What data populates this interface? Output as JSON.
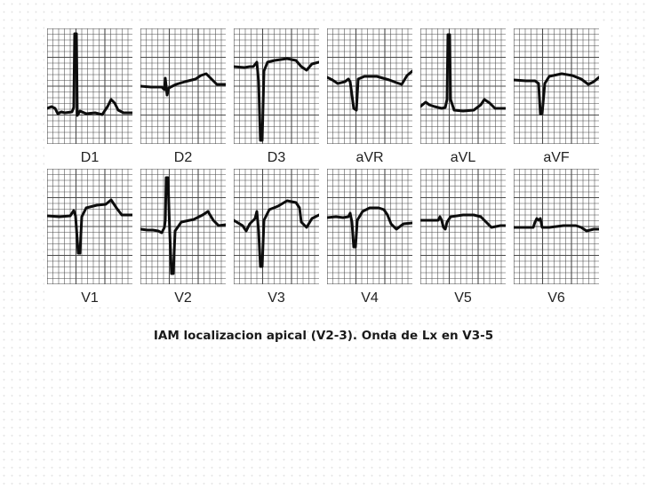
{
  "figure": {
    "leads": [
      {
        "label": "D1",
        "trace": [
          [
            0,
            90
          ],
          [
            5,
            88
          ],
          [
            9,
            90
          ],
          [
            12,
            96
          ],
          [
            16,
            94
          ],
          [
            20,
            95
          ],
          [
            28,
            94
          ],
          [
            30,
            89
          ],
          [
            31,
            6
          ],
          [
            33,
            6
          ],
          [
            34,
            98
          ],
          [
            37,
            93
          ],
          [
            44,
            96
          ],
          [
            54,
            95
          ],
          [
            62,
            97
          ],
          [
            68,
            88
          ],
          [
            72,
            80
          ],
          [
            76,
            84
          ],
          [
            80,
            92
          ],
          [
            86,
            95
          ],
          [
            96,
            95
          ]
        ]
      },
      {
        "label": "D2",
        "trace": [
          [
            0,
            65
          ],
          [
            12,
            66
          ],
          [
            24,
            66
          ],
          [
            27,
            69
          ],
          [
            28,
            56
          ],
          [
            30,
            75
          ],
          [
            32,
            67
          ],
          [
            40,
            63
          ],
          [
            50,
            60
          ],
          [
            62,
            57
          ],
          [
            68,
            53
          ],
          [
            74,
            51
          ],
          [
            80,
            57
          ],
          [
            86,
            63
          ],
          [
            96,
            63
          ]
        ]
      },
      {
        "label": "D3",
        "trace": [
          [
            0,
            43
          ],
          [
            12,
            44
          ],
          [
            18,
            43
          ],
          [
            22,
            43
          ],
          [
            26,
            38
          ],
          [
            28,
            60
          ],
          [
            30,
            126
          ],
          [
            32,
            126
          ],
          [
            34,
            48
          ],
          [
            38,
            38
          ],
          [
            46,
            36
          ],
          [
            60,
            34
          ],
          [
            70,
            36
          ],
          [
            76,
            43
          ],
          [
            82,
            47
          ],
          [
            88,
            40
          ],
          [
            96,
            38
          ]
        ]
      },
      {
        "label": "aVR",
        "trace": [
          [
            0,
            55
          ],
          [
            6,
            58
          ],
          [
            12,
            62
          ],
          [
            20,
            60
          ],
          [
            24,
            57
          ],
          [
            26,
            60
          ],
          [
            30,
            90
          ],
          [
            33,
            92
          ],
          [
            35,
            57
          ],
          [
            42,
            54
          ],
          [
            56,
            54
          ],
          [
            70,
            58
          ],
          [
            78,
            61
          ],
          [
            84,
            63
          ],
          [
            90,
            53
          ],
          [
            96,
            48
          ]
        ]
      },
      {
        "label": "aVL",
        "trace": [
          [
            0,
            88
          ],
          [
            6,
            83
          ],
          [
            10,
            86
          ],
          [
            16,
            88
          ],
          [
            24,
            90
          ],
          [
            28,
            89
          ],
          [
            30,
            80
          ],
          [
            31,
            7
          ],
          [
            33,
            7
          ],
          [
            34,
            80
          ],
          [
            38,
            92
          ],
          [
            48,
            93
          ],
          [
            60,
            92
          ],
          [
            68,
            86
          ],
          [
            72,
            80
          ],
          [
            78,
            84
          ],
          [
            84,
            90
          ],
          [
            96,
            90
          ]
        ]
      },
      {
        "label": "aVF",
        "trace": [
          [
            0,
            58
          ],
          [
            14,
            59
          ],
          [
            24,
            59
          ],
          [
            28,
            62
          ],
          [
            30,
            96
          ],
          [
            32,
            96
          ],
          [
            35,
            62
          ],
          [
            40,
            54
          ],
          [
            54,
            51
          ],
          [
            66,
            53
          ],
          [
            76,
            57
          ],
          [
            84,
            63
          ],
          [
            90,
            60
          ],
          [
            96,
            55
          ]
        ]
      },
      {
        "label": "V1",
        "trace": [
          [
            0,
            53
          ],
          [
            14,
            54
          ],
          [
            26,
            53
          ],
          [
            30,
            47
          ],
          [
            32,
            53
          ],
          [
            35,
            95
          ],
          [
            37,
            95
          ],
          [
            39,
            54
          ],
          [
            44,
            44
          ],
          [
            56,
            41
          ],
          [
            66,
            40
          ],
          [
            72,
            35
          ],
          [
            78,
            44
          ],
          [
            84,
            52
          ],
          [
            96,
            52
          ]
        ]
      },
      {
        "label": "V2",
        "trace": [
          [
            0,
            68
          ],
          [
            8,
            69
          ],
          [
            14,
            69
          ],
          [
            20,
            70
          ],
          [
            24,
            72
          ],
          [
            27,
            66
          ],
          [
            28,
            58
          ],
          [
            29,
            10
          ],
          [
            31,
            10
          ],
          [
            33,
            72
          ],
          [
            35,
            118
          ],
          [
            37,
            118
          ],
          [
            39,
            70
          ],
          [
            46,
            60
          ],
          [
            60,
            57
          ],
          [
            70,
            52
          ],
          [
            76,
            48
          ],
          [
            82,
            58
          ],
          [
            88,
            64
          ],
          [
            96,
            63
          ]
        ]
      },
      {
        "label": "V3",
        "trace": [
          [
            0,
            58
          ],
          [
            10,
            64
          ],
          [
            14,
            70
          ],
          [
            18,
            62
          ],
          [
            24,
            56
          ],
          [
            26,
            48
          ],
          [
            28,
            70
          ],
          [
            30,
            110
          ],
          [
            32,
            110
          ],
          [
            34,
            58
          ],
          [
            40,
            46
          ],
          [
            50,
            42
          ],
          [
            60,
            36
          ],
          [
            70,
            38
          ],
          [
            74,
            44
          ],
          [
            76,
            60
          ],
          [
            82,
            66
          ],
          [
            88,
            56
          ],
          [
            96,
            52
          ]
        ]
      },
      {
        "label": "V4",
        "trace": [
          [
            0,
            55
          ],
          [
            10,
            54
          ],
          [
            18,
            55
          ],
          [
            24,
            54
          ],
          [
            26,
            50
          ],
          [
            28,
            60
          ],
          [
            30,
            88
          ],
          [
            32,
            88
          ],
          [
            34,
            58
          ],
          [
            40,
            48
          ],
          [
            48,
            44
          ],
          [
            58,
            44
          ],
          [
            64,
            46
          ],
          [
            68,
            52
          ],
          [
            72,
            62
          ],
          [
            78,
            68
          ],
          [
            86,
            62
          ],
          [
            96,
            61
          ]
        ]
      },
      {
        "label": "V5",
        "trace": [
          [
            0,
            58
          ],
          [
            10,
            58
          ],
          [
            20,
            58
          ],
          [
            22,
            54
          ],
          [
            24,
            58
          ],
          [
            26,
            66
          ],
          [
            28,
            68
          ],
          [
            30,
            60
          ],
          [
            34,
            54
          ],
          [
            48,
            52
          ],
          [
            60,
            52
          ],
          [
            68,
            54
          ],
          [
            74,
            60
          ],
          [
            80,
            66
          ],
          [
            90,
            64
          ],
          [
            96,
            64
          ]
        ]
      },
      {
        "label": "V6",
        "trace": [
          [
            0,
            66
          ],
          [
            14,
            66
          ],
          [
            22,
            66
          ],
          [
            24,
            60
          ],
          [
            26,
            56
          ],
          [
            28,
            58
          ],
          [
            30,
            56
          ],
          [
            32,
            66
          ],
          [
            40,
            66
          ],
          [
            56,
            64
          ],
          [
            70,
            64
          ],
          [
            76,
            66
          ],
          [
            82,
            70
          ],
          [
            90,
            68
          ],
          [
            96,
            68
          ]
        ]
      }
    ],
    "colors": {
      "grid": "#4a4a4a",
      "trace": "#0d0d0d",
      "panel_bg": "#ffffff"
    }
  },
  "caption": {
    "text": "IAM localizacion apical (V2-3). Onda de Lx en V3-5"
  }
}
